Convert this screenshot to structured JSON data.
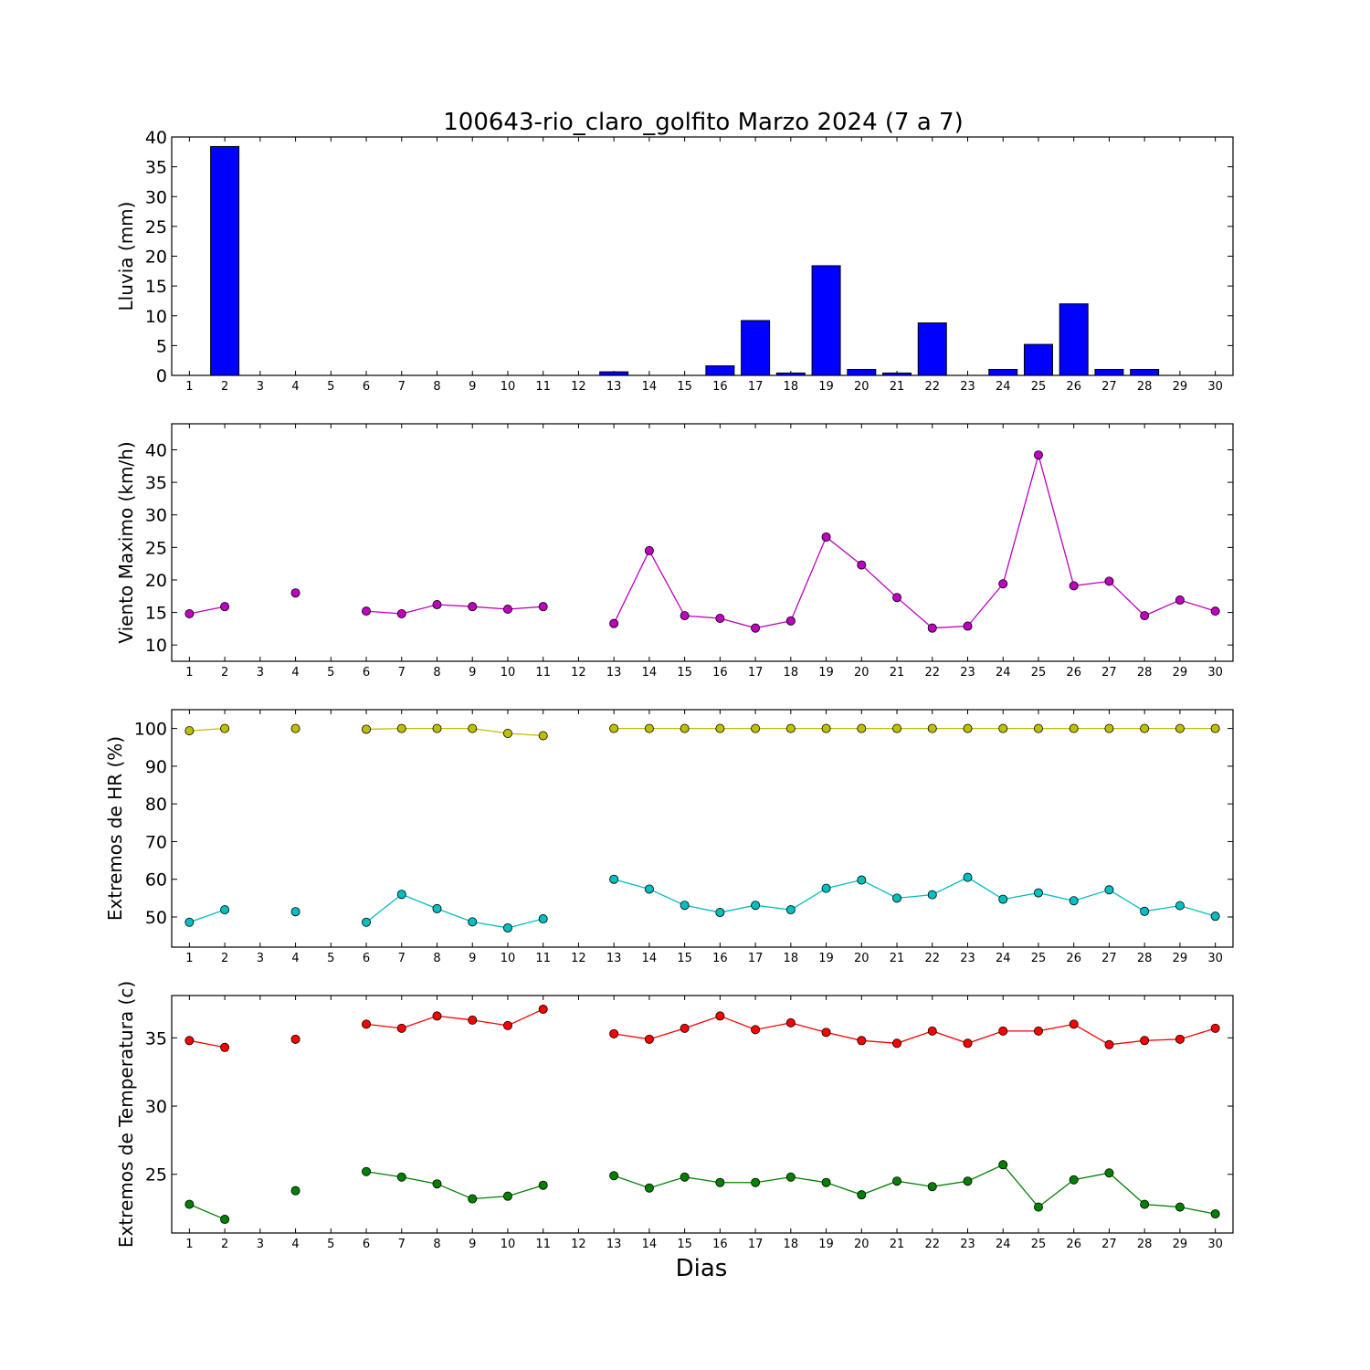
{
  "title": "100643-rio_claro_golfito Marzo 2024  (7 a 7)",
  "xlabel": "Dias",
  "colors": {
    "rain": "#0000ff",
    "wind": "#bf00bf",
    "hr_max": "#bfbf00",
    "hr_min": "#00bfbf",
    "temp_max": "#ff0000",
    "temp_min": "#008000"
  },
  "chart_data": [
    {
      "type": "bar",
      "ylabel": "Lluvia (mm)",
      "x": [
        1,
        2,
        3,
        4,
        5,
        6,
        7,
        8,
        9,
        10,
        11,
        12,
        13,
        14,
        15,
        16,
        17,
        18,
        19,
        20,
        21,
        22,
        23,
        24,
        25,
        26,
        27,
        28,
        29,
        30
      ],
      "xticks": [
        "1",
        "2",
        "3",
        "4",
        "5",
        "6",
        "7",
        "8",
        "9",
        "10",
        "11",
        "12",
        "13",
        "14",
        "15",
        "16",
        "17",
        "18",
        "19",
        "20",
        "21",
        "22",
        "23",
        "24",
        "25",
        "26",
        "27",
        "28",
        "29",
        "30"
      ],
      "ylim": [
        0,
        40
      ],
      "yticks": [
        0,
        5,
        10,
        15,
        20,
        25,
        30,
        35,
        40
      ],
      "series": [
        {
          "color_key": "rain",
          "values": [
            0,
            38.4,
            0,
            0,
            0,
            0,
            0,
            0,
            0,
            0,
            0,
            0,
            0.6,
            0,
            0,
            1.6,
            9.2,
            0.4,
            18.4,
            1,
            0.4,
            8.8,
            0,
            1,
            5.2,
            12,
            1,
            1,
            0,
            0
          ]
        }
      ]
    },
    {
      "type": "line",
      "ylabel": "Viento Maximo (km/h)",
      "x": [
        1,
        2,
        3,
        4,
        5,
        6,
        7,
        8,
        9,
        10,
        11,
        12,
        13,
        14,
        15,
        16,
        17,
        18,
        19,
        20,
        21,
        22,
        23,
        24,
        25,
        26,
        27,
        28,
        29,
        30
      ],
      "xticks": [
        "1",
        "2",
        "3",
        "4",
        "5",
        "6",
        "7",
        "8",
        "9",
        "10",
        "11",
        "12",
        "13",
        "14",
        "15",
        "16",
        "17",
        "18",
        "19",
        "20",
        "21",
        "22",
        "23",
        "24",
        "25",
        "26",
        "27",
        "28",
        "29",
        "30"
      ],
      "ylim": [
        7.5,
        44
      ],
      "yticks": [
        10,
        15,
        20,
        25,
        30,
        35,
        40
      ],
      "series": [
        {
          "color_key": "wind",
          "values": [
            14.8,
            15.9,
            null,
            18.0,
            null,
            15.2,
            14.8,
            16.2,
            15.9,
            15.5,
            15.9,
            null,
            13.3,
            24.5,
            14.5,
            14.1,
            12.6,
            13.7,
            26.6,
            22.3,
            17.3,
            12.6,
            12.9,
            19.4,
            39.2,
            19.1,
            19.8,
            14.5,
            16.9,
            15.2
          ]
        }
      ]
    },
    {
      "type": "line",
      "ylabel": "Extremos de HR (%)",
      "x": [
        1,
        2,
        3,
        4,
        5,
        6,
        7,
        8,
        9,
        10,
        11,
        12,
        13,
        14,
        15,
        16,
        17,
        18,
        19,
        20,
        21,
        22,
        23,
        24,
        25,
        26,
        27,
        28,
        29,
        30
      ],
      "xticks": [
        "1",
        "2",
        "3",
        "4",
        "5",
        "6",
        "7",
        "8",
        "9",
        "10",
        "11",
        "12",
        "13",
        "14",
        "15",
        "16",
        "17",
        "18",
        "19",
        "20",
        "21",
        "22",
        "23",
        "24",
        "25",
        "26",
        "27",
        "28",
        "29",
        "30"
      ],
      "ylim": [
        42,
        105
      ],
      "yticks": [
        50,
        60,
        70,
        80,
        90,
        100
      ],
      "series": [
        {
          "color_key": "hr_max",
          "values": [
            99.4,
            100,
            null,
            100,
            null,
            99.8,
            100,
            100,
            100,
            98.7,
            98.1,
            null,
            100,
            100,
            100,
            100,
            100,
            100,
            100,
            100,
            100,
            100,
            100,
            100,
            100,
            100,
            100,
            100,
            100,
            100
          ]
        },
        {
          "color_key": "hr_min",
          "values": [
            48.6,
            51.9,
            null,
            51.4,
            null,
            48.6,
            56,
            52.2,
            48.7,
            47.1,
            49.5,
            null,
            60,
            57.4,
            53.1,
            51.2,
            53.1,
            51.9,
            57.6,
            59.8,
            55,
            55.9,
            60.5,
            54.7,
            56.4,
            54.3,
            57.2,
            51.5,
            53,
            50.2
          ]
        }
      ]
    },
    {
      "type": "line",
      "ylabel": "Extremos de Temperatura (c)",
      "x": [
        1,
        2,
        3,
        4,
        5,
        6,
        7,
        8,
        9,
        10,
        11,
        12,
        13,
        14,
        15,
        16,
        17,
        18,
        19,
        20,
        21,
        22,
        23,
        24,
        25,
        26,
        27,
        28,
        29,
        30
      ],
      "xticks": [
        "1",
        "2",
        "3",
        "4",
        "5",
        "6",
        "7",
        "8",
        "9",
        "10",
        "11",
        "12",
        "13",
        "14",
        "15",
        "16",
        "17",
        "18",
        "19",
        "20",
        "21",
        "22",
        "23",
        "24",
        "25",
        "26",
        "27",
        "28",
        "29",
        "30"
      ],
      "ylim": [
        20.7,
        38.1
      ],
      "yticks": [
        25,
        30,
        35
      ],
      "series": [
        {
          "color_key": "temp_max",
          "values": [
            34.8,
            34.3,
            null,
            34.9,
            null,
            36,
            35.7,
            36.6,
            36.3,
            35.9,
            37.1,
            null,
            35.3,
            34.9,
            35.7,
            36.6,
            35.6,
            36.1,
            35.4,
            34.8,
            34.6,
            35.5,
            34.6,
            35.5,
            35.5,
            36,
            34.5,
            34.8,
            34.9,
            35.7
          ]
        },
        {
          "color_key": "temp_min",
          "values": [
            22.8,
            21.7,
            null,
            23.8,
            null,
            25.2,
            24.8,
            24.3,
            23.2,
            23.4,
            24.2,
            null,
            24.9,
            24,
            24.8,
            24.4,
            24.4,
            24.8,
            24.4,
            23.5,
            24.5,
            24.1,
            24.5,
            25.7,
            22.6,
            24.6,
            25.1,
            22.8,
            22.6,
            22.1
          ]
        }
      ]
    }
  ]
}
